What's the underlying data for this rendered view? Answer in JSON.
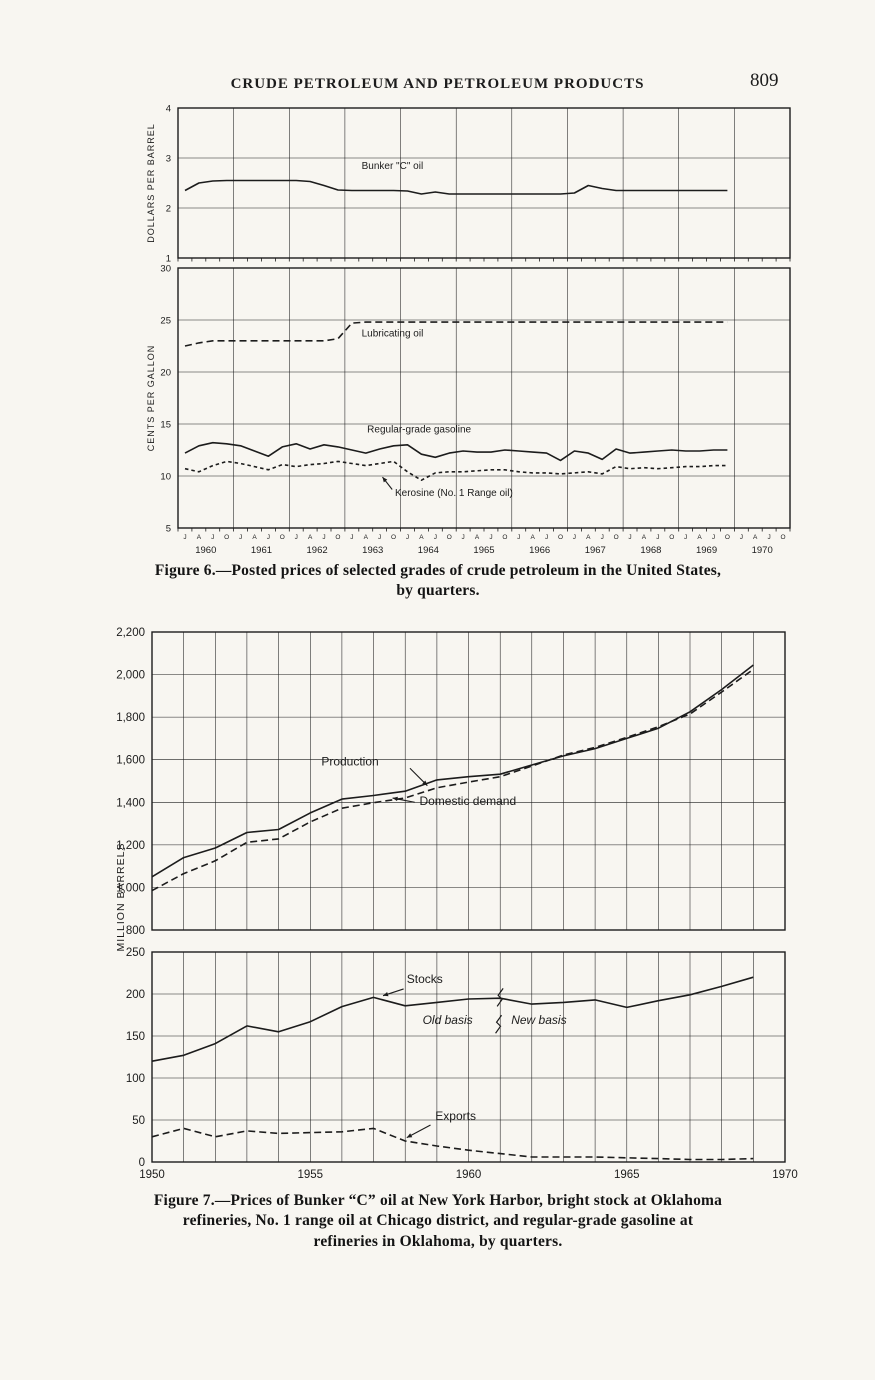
{
  "page": {
    "header": "CRUDE PETROLEUM AND PETROLEUM PRODUCTS",
    "page_number": "809"
  },
  "figure6": {
    "caption_line1": "Figure 6.—Posted prices of selected grades of crude petroleum in the United States,",
    "caption_line2": "by quarters."
  },
  "figure7": {
    "caption_line1": "Figure 7.—Prices of Bunker “C” oil at New York Harbor, bright stock at Oklahoma",
    "caption_line2": "refineries, No. 1 range oil at Chicago district, and regular-grade gasoline at",
    "caption_line3": "refineries in Oklahoma, by quarters."
  },
  "chart_data": [
    {
      "id": "fig6_top",
      "type": "line",
      "ylabel": "DOLLARS PER BARREL",
      "ylim": [
        1,
        4
      ],
      "yticks": [
        4,
        3,
        2,
        1
      ],
      "xlim": [
        0,
        44
      ],
      "xgrid_step": 4,
      "x_minor_ticks": true,
      "x_unit": "quarters 1960-1970",
      "series": [
        {
          "name": "Bunker \"C\" oil",
          "line_style": "solid",
          "x_start": 0.5,
          "x_step": 1,
          "values": [
            2.35,
            2.5,
            2.54,
            2.55,
            2.55,
            2.55,
            2.55,
            2.55,
            2.55,
            2.53,
            2.45,
            2.36,
            2.35,
            2.35,
            2.35,
            2.35,
            2.34,
            2.28,
            2.32,
            2.28,
            2.28,
            2.28,
            2.28,
            2.28,
            2.28,
            2.28,
            2.28,
            2.28,
            2.3,
            2.45,
            2.39,
            2.35,
            2.35,
            2.35,
            2.35,
            2.35,
            2.35,
            2.35,
            2.35,
            2.35
          ]
        }
      ],
      "annotations": [
        {
          "text": "Bunker \"C\" oil",
          "x": 13.2,
          "y": 2.78,
          "anchor": "start"
        }
      ]
    },
    {
      "id": "fig6_bottom",
      "type": "line",
      "ylabel": "CENTS PER GALLON",
      "ylim": [
        5,
        30
      ],
      "yticks": [
        30,
        25,
        20,
        15,
        10,
        5
      ],
      "xlim": [
        0,
        44
      ],
      "xgrid_step": 4,
      "x_minor_ticks": true,
      "x_quarter_letters": [
        "J",
        "A",
        "J",
        "O"
      ],
      "x_year_labels": [
        "1960",
        "1961",
        "1962",
        "1963",
        "1964",
        "1965",
        "1966",
        "1967",
        "1968",
        "1969",
        "1970"
      ],
      "series": [
        {
          "name": "Lubricating oil",
          "line_style": "dashed",
          "x_start": 0.5,
          "x_step": 1,
          "values": [
            22.5,
            22.8,
            23.0,
            23.0,
            23.0,
            23.0,
            23.0,
            23.0,
            23.0,
            23.0,
            23.0,
            23.2,
            24.7,
            24.8,
            24.8,
            24.8,
            24.8,
            24.8,
            24.8,
            24.8,
            24.8,
            24.8,
            24.8,
            24.8,
            24.8,
            24.8,
            24.8,
            24.8,
            24.8,
            24.8,
            24.8,
            24.8,
            24.8,
            24.8,
            24.8,
            24.8,
            24.8,
            24.8,
            24.8,
            24.8
          ]
        },
        {
          "name": "Regular-grade gasoline",
          "line_style": "solid",
          "x_start": 0.5,
          "x_step": 1,
          "values": [
            12.2,
            12.9,
            13.2,
            13.1,
            12.9,
            12.4,
            11.9,
            12.8,
            13.1,
            12.6,
            13.0,
            12.8,
            12.5,
            12.2,
            12.6,
            12.9,
            13.0,
            12.1,
            11.8,
            12.2,
            12.4,
            12.3,
            12.3,
            12.5,
            12.4,
            12.3,
            12.2,
            11.5,
            12.4,
            12.2,
            11.6,
            12.6,
            12.2,
            12.3,
            12.4,
            12.5,
            12.4,
            12.4,
            12.5,
            12.5
          ]
        },
        {
          "name": "Kerosine (No. 1 Range oil)",
          "line_style": "dashed-short",
          "x_start": 0.5,
          "x_step": 1,
          "values": [
            10.7,
            10.4,
            11.0,
            11.4,
            11.2,
            10.9,
            10.6,
            11.1,
            10.9,
            11.1,
            11.2,
            11.4,
            11.2,
            11.0,
            11.2,
            11.4,
            10.4,
            9.6,
            10.3,
            10.4,
            10.4,
            10.5,
            10.6,
            10.6,
            10.4,
            10.3,
            10.3,
            10.2,
            10.3,
            10.4,
            10.2,
            10.9,
            10.7,
            10.8,
            10.7,
            10.8,
            10.9,
            10.9,
            11.0,
            11.0
          ]
        }
      ],
      "annotations": [
        {
          "text": "Lubricating oil",
          "x": 13.2,
          "y": 23.4,
          "anchor": "start"
        },
        {
          "text": "Regular-grade gasoline",
          "x": 13.6,
          "y": 14.2,
          "anchor": "start"
        },
        {
          "text": "Kerosine (No. 1 Range oil)",
          "x": 15.6,
          "y": 8.1,
          "anchor": "start",
          "arrow": [
            15.4,
            8.7,
            14.7,
            9.9
          ]
        }
      ]
    },
    {
      "id": "fig7_top",
      "type": "line",
      "ylabel": "MILLION BARRELS",
      "ylim": [
        800,
        2200
      ],
      "yticks": [
        2200,
        2000,
        1800,
        1600,
        1400,
        1200,
        1000,
        800
      ],
      "ytick_labels": [
        "2,200",
        "2,000",
        "1,800",
        "1,600",
        "1,400",
        "1,200",
        "1,000",
        "800"
      ],
      "xlim": [
        1950,
        1970
      ],
      "xgrid_step": 1,
      "series": [
        {
          "name": "Production",
          "line_style": "solid",
          "x_start": 1950,
          "x_step": 1,
          "values": [
            1050,
            1140,
            1185,
            1258,
            1272,
            1350,
            1415,
            1432,
            1452,
            1505,
            1520,
            1532,
            1575,
            1618,
            1652,
            1700,
            1748,
            1825,
            1930,
            2045
          ]
        },
        {
          "name": "Domestic demand",
          "line_style": "dashed",
          "x_start": 1950,
          "x_step": 1,
          "values": [
            985,
            1065,
            1125,
            1212,
            1228,
            1308,
            1372,
            1398,
            1420,
            1468,
            1495,
            1520,
            1570,
            1622,
            1658,
            1705,
            1755,
            1815,
            1918,
            2025
          ]
        }
      ],
      "annotations": [
        {
          "text": "Production",
          "x": 1955.35,
          "y": 1572,
          "anchor": "start",
          "arrow": [
            1958.15,
            1560,
            1958.7,
            1478
          ]
        },
        {
          "text": "Domestic demand",
          "x": 1958.45,
          "y": 1388,
          "anchor": "start",
          "arrow": [
            1958.3,
            1400,
            1957.6,
            1420
          ]
        }
      ]
    },
    {
      "id": "fig7_bottom",
      "type": "line",
      "ylim": [
        0,
        250
      ],
      "yticks": [
        250,
        200,
        150,
        100,
        50,
        0
      ],
      "xlim": [
        1950,
        1970
      ],
      "xgrid_step": 1,
      "x_tick_labels": [
        {
          "x": 1950,
          "label": "1950"
        },
        {
          "x": 1955,
          "label": "1955"
        },
        {
          "x": 1960,
          "label": "1960"
        },
        {
          "x": 1965,
          "label": "1965"
        },
        {
          "x": 1970,
          "label": "1970"
        }
      ],
      "series": [
        {
          "name": "Stocks",
          "line_style": "solid",
          "x_start": 1950,
          "x_step": 1,
          "values": [
            120,
            127,
            141,
            162,
            155,
            167,
            185,
            196,
            186,
            190,
            194,
            195,
            188,
            190,
            193,
            184,
            192,
            199,
            209,
            220
          ]
        },
        {
          "name": "Exports",
          "line_style": "dashed",
          "x_start": 1950,
          "x_step": 1,
          "values": [
            30,
            40,
            30,
            37,
            34,
            35,
            36,
            40,
            25,
            19,
            14,
            10,
            6,
            6,
            6,
            5,
            4,
            3,
            3,
            4
          ]
        }
      ],
      "annotations": [
        {
          "text": "Stocks",
          "x": 1958.05,
          "y": 213,
          "anchor": "start",
          "arrow": [
            1957.95,
            206,
            1957.3,
            198
          ]
        },
        {
          "text": "Old basis",
          "x": 1958.55,
          "y": 164,
          "anchor": "start",
          "italic": true
        },
        {
          "text": "New basis",
          "x": 1961.35,
          "y": 164,
          "anchor": "start",
          "italic": true
        },
        {
          "text": "Exports",
          "x": 1958.95,
          "y": 50,
          "anchor": "start",
          "arrow": [
            1958.8,
            44,
            1958.05,
            29
          ]
        },
        {
          "type": "break",
          "x": 1961.0,
          "y": 196
        },
        {
          "type": "break",
          "x": 1960.95,
          "y": 164
        }
      ]
    }
  ]
}
